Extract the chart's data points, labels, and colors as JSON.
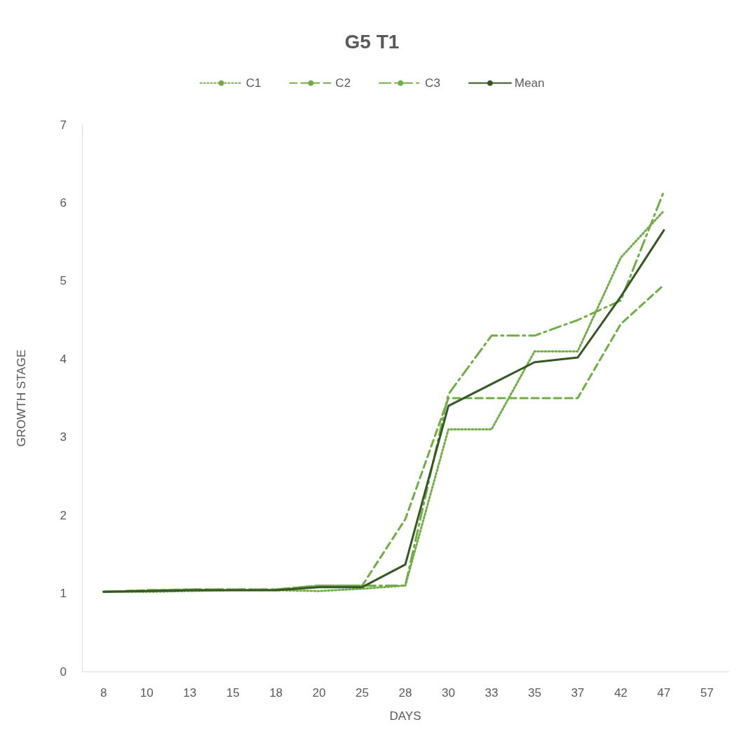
{
  "chart_data": {
    "type": "line",
    "title": "G5 T1",
    "xlabel": "DAYS",
    "ylabel": "GROWTH STAGE",
    "categories": [
      "8",
      "10",
      "13",
      "15",
      "18",
      "20",
      "25",
      "28",
      "30",
      "33",
      "35",
      "37",
      "42",
      "47",
      "57"
    ],
    "series": [
      {
        "name": "C1",
        "color": "#70ad47",
        "line_style": "dotted",
        "values": [
          1.02,
          1.02,
          1.03,
          1.04,
          1.04,
          1.03,
          1.06,
          1.1,
          3.1,
          3.1,
          4.1,
          4.1,
          5.3,
          5.9,
          null
        ]
      },
      {
        "name": "C2",
        "color": "#70ad47",
        "line_style": "dashed",
        "values": [
          1.02,
          1.04,
          1.05,
          1.05,
          1.05,
          1.1,
          1.1,
          1.95,
          3.5,
          3.5,
          3.5,
          3.5,
          4.45,
          4.95,
          null
        ]
      },
      {
        "name": "C3",
        "color": "#70ad47",
        "line_style": "dashdot",
        "values": [
          1.02,
          1.04,
          1.05,
          1.05,
          1.05,
          1.1,
          1.1,
          1.1,
          3.55,
          4.3,
          4.3,
          4.5,
          4.75,
          6.15,
          null
        ]
      },
      {
        "name": "Mean",
        "color": "#375623",
        "line_style": "solid",
        "values": [
          1.02,
          1.03,
          1.04,
          1.04,
          1.04,
          1.08,
          1.08,
          1.37,
          3.4,
          3.68,
          3.96,
          4.02,
          4.8,
          5.65,
          null
        ]
      }
    ],
    "ylim": [
      0,
      7
    ],
    "yticks": [
      0,
      1,
      2,
      3,
      4,
      5,
      6,
      7
    ],
    "grid": false,
    "legend": "top",
    "marker": "none"
  }
}
